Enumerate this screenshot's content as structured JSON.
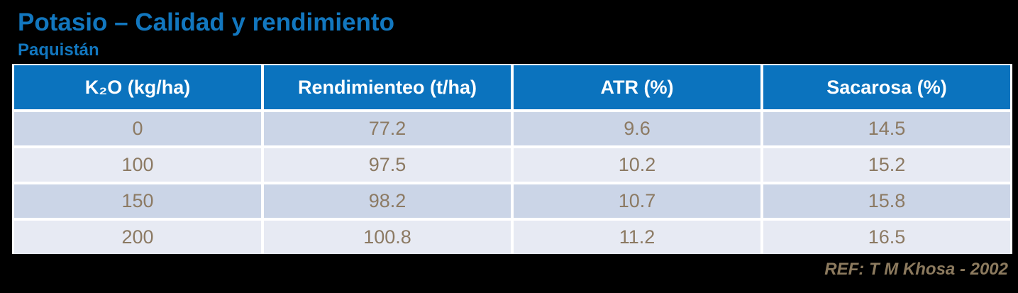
{
  "slide": {
    "title": "Potasio – Calidad y rendimiento",
    "subtitle": "Paquistán",
    "reference": "REF: T M Khosa - 2002"
  },
  "table": {
    "headers": [
      "K₂O (kg/ha)",
      "Rendimienteo (t/ha)",
      "ATR (%)",
      "Sacarosa (%)"
    ],
    "rows": [
      [
        "0",
        "77.2",
        "9.6",
        "14.5"
      ],
      [
        "100",
        "97.5",
        "10.2",
        "15.2"
      ],
      [
        "150",
        "98.2",
        "10.7",
        "15.8"
      ],
      [
        "200",
        "100.8",
        "11.2",
        "16.5"
      ]
    ]
  },
  "chart_data": {
    "type": "table",
    "title": "Potasio – Calidad y rendimiento",
    "subtitle": "Paquistán",
    "columns": [
      "K2O (kg/ha)",
      "Rendimienteo (t/ha)",
      "ATR (%)",
      "Sacarosa (%)"
    ],
    "rows": [
      [
        0,
        77.2,
        9.6,
        14.5
      ],
      [
        100,
        97.5,
        10.2,
        15.2
      ],
      [
        150,
        98.2,
        10.7,
        15.8
      ],
      [
        200,
        100.8,
        11.2,
        16.5
      ]
    ],
    "source": "REF: T M Khosa - 2002"
  },
  "colors": {
    "background": "#000000",
    "accent_blue": "#1277BF",
    "header_background": "#0B73BE",
    "header_text": "#FFFFFF",
    "row_dark": "#CBD5E7",
    "row_light": "#E7EAF3",
    "cell_text": "#8C7A63",
    "reference_text": "#8C7A5E"
  }
}
